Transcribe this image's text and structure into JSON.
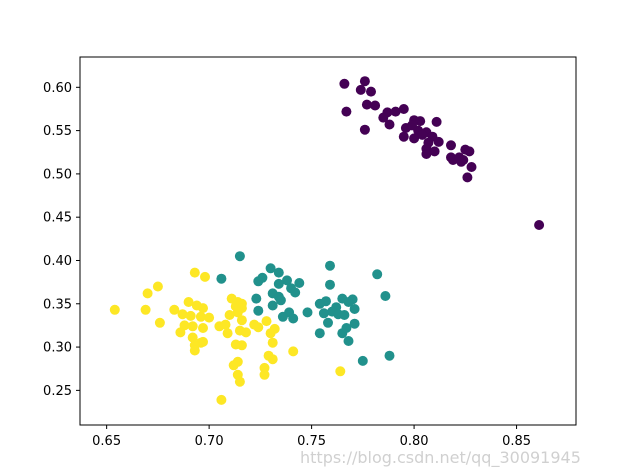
{
  "chart_data": {
    "type": "scatter",
    "title": "",
    "xlabel": "",
    "ylabel": "",
    "xlim": [
      0.637,
      0.879
    ],
    "ylim": [
      0.21,
      0.635
    ],
    "x_ticks": [
      0.65,
      0.7,
      0.75,
      0.8,
      0.85
    ],
    "y_ticks": [
      0.25,
      0.3,
      0.35,
      0.4,
      0.45,
      0.5,
      0.55,
      0.6
    ],
    "x_tick_labels": [
      "0.65",
      "0.70",
      "0.75",
      "0.80",
      "0.85"
    ],
    "y_tick_labels": [
      "0.25",
      "0.30",
      "0.35",
      "0.40",
      "0.45",
      "0.50",
      "0.55",
      "0.60"
    ],
    "grid": false,
    "series": [
      {
        "color": "#440154",
        "points": [
          [
            0.766,
            0.604
          ],
          [
            0.776,
            0.607
          ],
          [
            0.774,
            0.597
          ],
          [
            0.779,
            0.595
          ],
          [
            0.777,
            0.58
          ],
          [
            0.781,
            0.579
          ],
          [
            0.767,
            0.572
          ],
          [
            0.787,
            0.571
          ],
          [
            0.791,
            0.572
          ],
          [
            0.795,
            0.575
          ],
          [
            0.785,
            0.565
          ],
          [
            0.8,
            0.562
          ],
          [
            0.803,
            0.561
          ],
          [
            0.811,
            0.56
          ],
          [
            0.788,
            0.557
          ],
          [
            0.796,
            0.553
          ],
          [
            0.799,
            0.556
          ],
          [
            0.776,
            0.551
          ],
          [
            0.802,
            0.55
          ],
          [
            0.806,
            0.548
          ],
          [
            0.804,
            0.545
          ],
          [
            0.809,
            0.543
          ],
          [
            0.8,
            0.541
          ],
          [
            0.795,
            0.543
          ],
          [
            0.812,
            0.537
          ],
          [
            0.807,
            0.536
          ],
          [
            0.818,
            0.533
          ],
          [
            0.806,
            0.529
          ],
          [
            0.81,
            0.526
          ],
          [
            0.825,
            0.528
          ],
          [
            0.827,
            0.526
          ],
          [
            0.806,
            0.523
          ],
          [
            0.818,
            0.519
          ],
          [
            0.819,
            0.516
          ],
          [
            0.822,
            0.519
          ],
          [
            0.824,
            0.516
          ],
          [
            0.823,
            0.514
          ],
          [
            0.828,
            0.508
          ],
          [
            0.826,
            0.496
          ],
          [
            0.861,
            0.441
          ]
        ]
      },
      {
        "color": "#21918c",
        "points": [
          [
            0.715,
            0.405
          ],
          [
            0.706,
            0.379
          ],
          [
            0.759,
            0.394
          ],
          [
            0.73,
            0.391
          ],
          [
            0.734,
            0.386
          ],
          [
            0.782,
            0.384
          ],
          [
            0.726,
            0.38
          ],
          [
            0.724,
            0.376
          ],
          [
            0.738,
            0.377
          ],
          [
            0.744,
            0.374
          ],
          [
            0.759,
            0.372
          ],
          [
            0.734,
            0.373
          ],
          [
            0.74,
            0.368
          ],
          [
            0.742,
            0.363
          ],
          [
            0.731,
            0.362
          ],
          [
            0.734,
            0.358
          ],
          [
            0.723,
            0.356
          ],
          [
            0.765,
            0.356
          ],
          [
            0.786,
            0.359
          ],
          [
            0.77,
            0.355
          ],
          [
            0.735,
            0.354
          ],
          [
            0.757,
            0.353
          ],
          [
            0.768,
            0.352
          ],
          [
            0.754,
            0.35
          ],
          [
            0.731,
            0.348
          ],
          [
            0.762,
            0.346
          ],
          [
            0.771,
            0.344
          ],
          [
            0.724,
            0.342
          ],
          [
            0.76,
            0.341
          ],
          [
            0.739,
            0.34
          ],
          [
            0.748,
            0.34
          ],
          [
            0.756,
            0.339
          ],
          [
            0.763,
            0.338
          ],
          [
            0.766,
            0.337
          ],
          [
            0.736,
            0.335
          ],
          [
            0.741,
            0.333
          ],
          [
            0.758,
            0.328
          ],
          [
            0.754,
            0.316
          ],
          [
            0.765,
            0.316
          ],
          [
            0.768,
            0.307
          ],
          [
            0.788,
            0.29
          ],
          [
            0.775,
            0.284
          ],
          [
            0.771,
            0.327
          ],
          [
            0.767,
            0.322
          ]
        ]
      },
      {
        "color": "#fde725",
        "points": [
          [
            0.675,
            0.37
          ],
          [
            0.67,
            0.362
          ],
          [
            0.693,
            0.386
          ],
          [
            0.698,
            0.381
          ],
          [
            0.705,
            0.324
          ],
          [
            0.654,
            0.343
          ],
          [
            0.669,
            0.343
          ],
          [
            0.676,
            0.328
          ],
          [
            0.683,
            0.343
          ],
          [
            0.69,
            0.352
          ],
          [
            0.694,
            0.348
          ],
          [
            0.697,
            0.345
          ],
          [
            0.687,
            0.338
          ],
          [
            0.691,
            0.336
          ],
          [
            0.696,
            0.335
          ],
          [
            0.7,
            0.334
          ],
          [
            0.688,
            0.325
          ],
          [
            0.692,
            0.324
          ],
          [
            0.697,
            0.322
          ],
          [
            0.686,
            0.317
          ],
          [
            0.692,
            0.311
          ],
          [
            0.696,
            0.305
          ],
          [
            0.693,
            0.302
          ],
          [
            0.697,
            0.306
          ],
          [
            0.693,
            0.296
          ],
          [
            0.711,
            0.356
          ],
          [
            0.714,
            0.352
          ],
          [
            0.716,
            0.35
          ],
          [
            0.713,
            0.347
          ],
          [
            0.716,
            0.345
          ],
          [
            0.714,
            0.34
          ],
          [
            0.71,
            0.337
          ],
          [
            0.716,
            0.331
          ],
          [
            0.708,
            0.326
          ],
          [
            0.722,
            0.326
          ],
          [
            0.715,
            0.319
          ],
          [
            0.718,
            0.317
          ],
          [
            0.709,
            0.316
          ],
          [
            0.713,
            0.303
          ],
          [
            0.716,
            0.302
          ],
          [
            0.724,
            0.323
          ],
          [
            0.732,
            0.321
          ],
          [
            0.728,
            0.33
          ],
          [
            0.73,
            0.316
          ],
          [
            0.731,
            0.305
          ],
          [
            0.729,
            0.29
          ],
          [
            0.731,
            0.286
          ],
          [
            0.727,
            0.276
          ],
          [
            0.727,
            0.268
          ],
          [
            0.714,
            0.283
          ],
          [
            0.712,
            0.279
          ],
          [
            0.714,
            0.268
          ],
          [
            0.715,
            0.26
          ],
          [
            0.741,
            0.295
          ],
          [
            0.706,
            0.239
          ],
          [
            0.764,
            0.272
          ]
        ]
      }
    ]
  },
  "watermark": "https://blog.csdn.net/qq_30091945"
}
